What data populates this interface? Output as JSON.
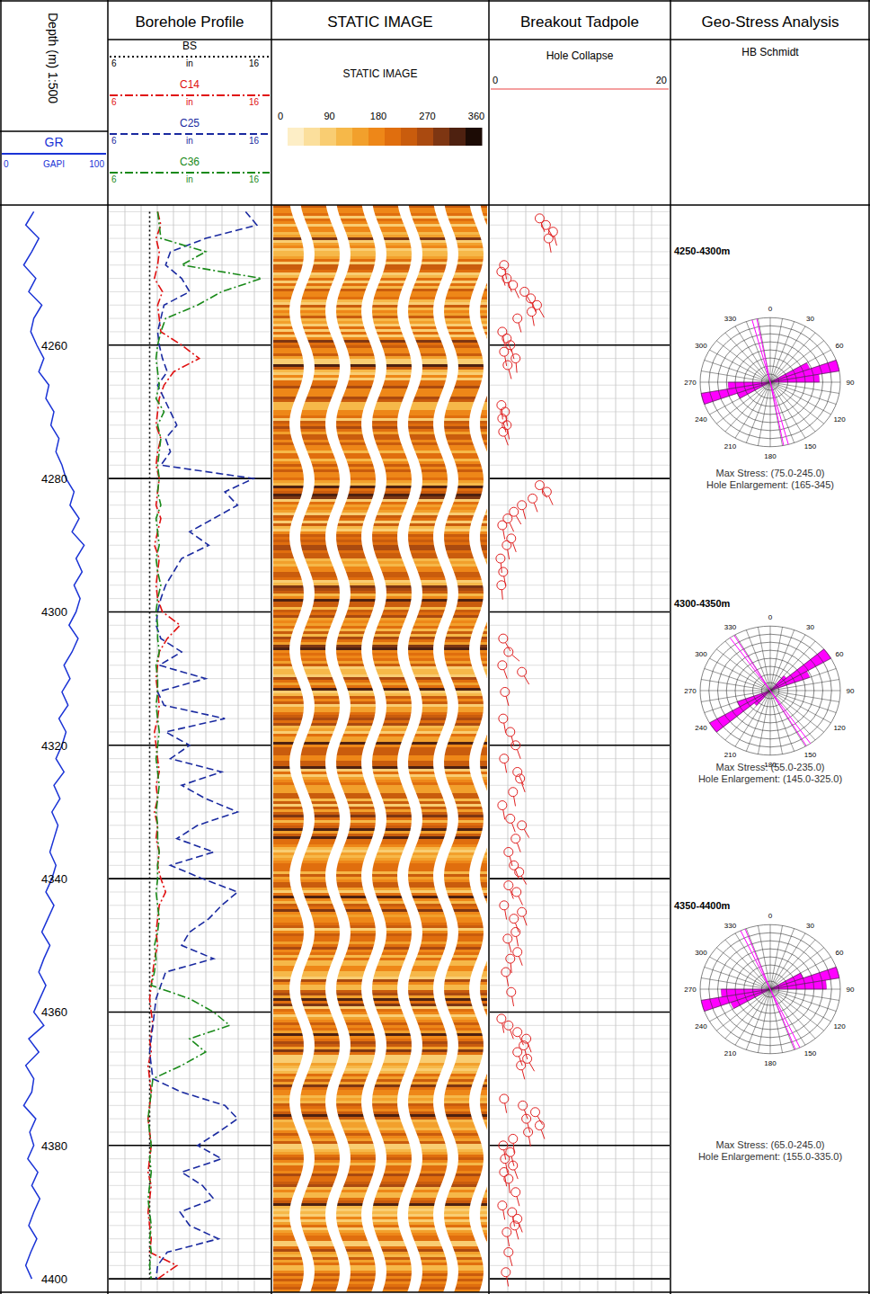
{
  "chart_data": {
    "type": "well_log",
    "depth_label": "Depth (m) 1:500",
    "ylim": [
      4239,
      4402
    ],
    "yticks": [
      4260,
      4280,
      4300,
      4320,
      4340,
      4360,
      4380,
      4400
    ],
    "x": [
      4240,
      4242,
      4244,
      4246,
      4248,
      4250,
      4252,
      4254,
      4256,
      4258,
      4260,
      4262,
      4264,
      4266,
      4268,
      4270,
      4272,
      4274,
      4276,
      4278,
      4280,
      4282,
      4284,
      4286,
      4288,
      4290,
      4292,
      4294,
      4296,
      4298,
      4300,
      4302,
      4304,
      4306,
      4308,
      4310,
      4312,
      4314,
      4316,
      4318,
      4320,
      4322,
      4324,
      4326,
      4328,
      4330,
      4332,
      4334,
      4336,
      4338,
      4340,
      4342,
      4344,
      4346,
      4348,
      4350,
      4352,
      4354,
      4356,
      4358,
      4360,
      4362,
      4364,
      4366,
      4368,
      4370,
      4372,
      4374,
      4376,
      4378,
      4380,
      4382,
      4384,
      4386,
      4388,
      4390,
      4392,
      4394,
      4396,
      4398,
      4400
    ],
    "gr": {
      "name": "GR",
      "unit": "GAPI",
      "xlim": [
        0,
        100
      ],
      "xticks": [
        0,
        100
      ],
      "color": "#1a33d6",
      "values": [
        30,
        22,
        35,
        28,
        20,
        32,
        25,
        38,
        30,
        27,
        33,
        40,
        35,
        45,
        42,
        50,
        47,
        55,
        52,
        58,
        62,
        70,
        66,
        75,
        68,
        80,
        72,
        78,
        70,
        76,
        72,
        65,
        74,
        68,
        60,
        66,
        58,
        64,
        55,
        62,
        58,
        52,
        60,
        50,
        56,
        48,
        54,
        50,
        46,
        52,
        48,
        42,
        50,
        44,
        38,
        46,
        40,
        35,
        42,
        36,
        30,
        40,
        25,
        35,
        22,
        30,
        28,
        20,
        32,
        26,
        30,
        24,
        34,
        28,
        36,
        30,
        25,
        33,
        27,
        22,
        28
      ]
    },
    "borehole": {
      "title": "Borehole Profile",
      "unit": "in",
      "xlim": [
        6,
        16
      ],
      "xticks": [
        6,
        16
      ],
      "series": [
        {
          "name": "BS",
          "color": "#000000",
          "line_style": "dotted",
          "values": [
            8.5,
            8.5,
            8.5,
            8.5,
            8.5,
            8.5,
            8.5,
            8.5,
            8.5,
            8.5,
            8.5,
            8.5,
            8.5,
            8.5,
            8.5,
            8.5,
            8.5,
            8.5,
            8.5,
            8.5,
            8.5,
            8.5,
            8.5,
            8.5,
            8.5,
            8.5,
            8.5,
            8.5,
            8.5,
            8.5,
            8.5,
            8.5,
            8.5,
            8.5,
            8.5,
            8.5,
            8.5,
            8.5,
            8.5,
            8.5,
            8.5,
            8.5,
            8.5,
            8.5,
            8.5,
            8.5,
            8.5,
            8.5,
            8.5,
            8.5,
            8.5,
            8.5,
            8.5,
            8.5,
            8.5,
            8.5,
            8.5,
            8.5,
            8.5,
            8.5,
            8.5,
            8.5,
            8.5,
            8.5,
            8.5,
            8.5,
            8.5,
            8.5,
            8.5,
            8.5,
            8.5,
            8.5,
            8.5,
            8.5,
            8.5,
            8.5,
            8.5,
            8.5,
            8.5,
            8.5,
            8.5
          ]
        },
        {
          "name": "C14",
          "color": "#e01010",
          "line_style": "dashdot",
          "values": [
            9.0,
            9.2,
            8.9,
            9.1,
            9.0,
            8.8,
            9.3,
            9.0,
            9.1,
            9.2,
            10.5,
            11.6,
            10.0,
            9.4,
            9.1,
            9.0,
            8.9,
            9.2,
            9.0,
            8.9,
            9.1,
            9.0,
            8.9,
            9.2,
            9.0,
            8.8,
            9.1,
            9.0,
            8.9,
            9.0,
            9.3,
            10.4,
            9.6,
            9.1,
            9.0,
            8.9,
            9.0,
            9.1,
            9.0,
            8.8,
            8.9,
            9.0,
            9.1,
            8.9,
            9.0,
            8.8,
            9.0,
            8.9,
            9.1,
            9.0,
            9.2,
            9.5,
            9.1,
            9.0,
            8.9,
            9.0,
            8.8,
            8.7,
            8.6,
            8.5,
            8.6,
            8.7,
            8.5,
            8.6,
            8.4,
            8.5,
            8.6,
            8.5,
            8.4,
            8.5,
            8.6,
            8.5,
            8.4,
            8.6,
            8.5,
            8.4,
            8.5,
            8.6,
            8.5,
            10.2,
            9.0
          ]
        },
        {
          "name": "C25",
          "color": "#1a2aa0",
          "line_style": "dashed",
          "values": [
            14.5,
            15.2,
            12.0,
            9.8,
            9.5,
            10.5,
            11.0,
            9.4,
            9.2,
            9.0,
            9.1,
            9.3,
            9.6,
            9.0,
            9.4,
            9.8,
            10.2,
            9.5,
            9.8,
            9.2,
            15.0,
            13.2,
            14.0,
            12.5,
            11.0,
            12.2,
            10.5,
            10.0,
            9.5,
            9.2,
            9.0,
            8.9,
            9.2,
            10.5,
            9.1,
            12.0,
            9.0,
            9.4,
            13.2,
            9.5,
            11.0,
            9.8,
            13.0,
            10.5,
            12.0,
            14.0,
            11.5,
            10.2,
            12.5,
            9.8,
            11.8,
            14.0,
            13.0,
            12.2,
            11.0,
            10.5,
            12.5,
            9.5,
            9.2,
            8.9,
            8.8,
            8.7,
            8.6,
            8.5,
            8.6,
            8.7,
            10.5,
            13.2,
            14.0,
            12.8,
            11.5,
            13.0,
            10.5,
            11.8,
            12.5,
            10.4,
            11.0,
            12.8,
            9.6,
            9.0,
            8.9
          ]
        },
        {
          "name": "C36",
          "color": "#1a8a1a",
          "line_style": "dashdot",
          "values": [
            9.0,
            9.1,
            9.2,
            12.0,
            10.5,
            15.5,
            13.0,
            11.5,
            9.5,
            9.2,
            9.0,
            8.9,
            9.0,
            9.1,
            8.9,
            9.4,
            9.0,
            9.2,
            9.1,
            9.0,
            9.1,
            9.0,
            9.2,
            8.9,
            9.0,
            9.1,
            8.9,
            9.0,
            9.2,
            9.0,
            8.9,
            9.0,
            9.0,
            9.1,
            8.9,
            9.0,
            9.0,
            8.9,
            9.0,
            9.1,
            9.0,
            8.9,
            9.0,
            9.1,
            9.0,
            8.9,
            9.0,
            9.0,
            9.1,
            9.0,
            9.0,
            8.9,
            9.0,
            9.1,
            9.0,
            8.8,
            8.9,
            8.8,
            8.6,
            11.0,
            12.5,
            13.5,
            11.0,
            12.0,
            10.5,
            8.7,
            8.6,
            8.5,
            8.4,
            8.5,
            8.6,
            8.5,
            8.6,
            8.5,
            8.4,
            8.5,
            8.6,
            8.5,
            8.6,
            8.5,
            8.6
          ]
        }
      ]
    },
    "image": {
      "title": "STATIC IMAGE",
      "label": "STATIC IMAGE",
      "ticks": [
        0,
        90,
        180,
        270,
        360
      ]
    },
    "tadpoles": {
      "title": "Breakout Tadpole",
      "name": "Hole Collapse",
      "xlim": [
        0,
        20
      ],
      "xticks": [
        0,
        20
      ],
      "color": "#e02020",
      "depth": [
        4241,
        4242,
        4243,
        4244,
        4248,
        4249,
        4250,
        4251,
        4252,
        4253,
        4254,
        4255,
        4256,
        4258,
        4259,
        4260,
        4261,
        4262,
        4263,
        4269,
        4270,
        4271,
        4272,
        4273,
        4281,
        4282,
        4283,
        4284,
        4285,
        4286,
        4287,
        4289,
        4290,
        4292,
        4294,
        4296,
        4304,
        4306,
        4308,
        4309,
        4312,
        4316,
        4318,
        4320,
        4322,
        4324,
        4325,
        4327,
        4329,
        4331,
        4332,
        4334,
        4336,
        4338,
        4339,
        4341,
        4342,
        4344,
        4345,
        4346,
        4348,
        4349,
        4351,
        4352,
        4354,
        4357,
        4361,
        4362,
        4363,
        4364,
        4365,
        4366,
        4367,
        4368,
        4373,
        4374,
        4375,
        4376,
        4377,
        4378,
        4379,
        4380,
        4381,
        4382,
        4383,
        4384,
        4385,
        4387,
        4389,
        4390,
        4391,
        4392,
        4393,
        4396,
        4399
      ],
      "values": [
        5.5,
        6.2,
        7.0,
        6.5,
        1.5,
        1.2,
        1.8,
        2.5,
        3.8,
        4.5,
        5.2,
        4.6,
        3.0,
        1.3,
        1.8,
        2.2,
        1.5,
        2.8,
        1.9,
        1.2,
        1.6,
        1.3,
        1.8,
        1.4,
        5.5,
        6.3,
        4.7,
        3.5,
        2.6,
        1.9,
        1.3,
        2.3,
        1.8,
        1.1,
        1.4,
        1.2,
        1.4,
        2.0,
        1.3,
        3.5,
        1.6,
        1.4,
        2.2,
        2.8,
        1.5,
        3.0,
        3.3,
        2.5,
        1.3,
        2.2,
        3.5,
        2.8,
        2.0,
        2.6,
        3.2,
        2.0,
        2.9,
        1.5,
        3.5,
        2.6,
        2.8,
        1.9,
        3.0,
        2.2,
        1.7,
        2.3,
        1.2,
        2.0,
        3.0,
        4.0,
        3.7,
        3.0,
        4.1,
        3.4,
        1.5,
        3.6,
        5.0,
        4.0,
        5.5,
        4.2,
        2.5,
        1.4,
        2.2,
        1.6,
        2.5,
        1.5,
        2.0,
        2.8,
        1.3,
        2.4,
        3.0,
        2.7,
        1.8,
        2.0,
        1.7
      ],
      "azimuth": [
        160,
        150,
        165,
        170,
        170,
        165,
        160,
        155,
        150,
        160,
        150,
        170,
        165,
        170,
        160,
        165,
        170,
        175,
        165,
        175,
        170,
        165,
        170,
        160,
        150,
        155,
        160,
        165,
        150,
        155,
        170,
        160,
        170,
        175,
        170,
        175,
        150,
        130,
        160,
        150,
        165,
        170,
        165,
        160,
        170,
        155,
        160,
        170,
        170,
        160,
        150,
        160,
        165,
        160,
        150,
        160,
        155,
        170,
        160,
        160,
        170,
        165,
        160,
        175,
        170,
        170,
        170,
        160,
        155,
        160,
        165,
        160,
        150,
        165,
        170,
        160,
        150,
        165,
        160,
        170,
        175,
        170,
        165,
        170,
        160,
        170,
        175,
        165,
        170,
        170,
        160,
        165,
        170,
        165,
        170
      ]
    },
    "stress": {
      "title": "Geo-Stress Analysis",
      "subtitle": "HB Schmidt",
      "rlim": [
        0,
        10
      ],
      "ticks": [
        0,
        30,
        60,
        90,
        120,
        150,
        180,
        210,
        240,
        270,
        300,
        330
      ],
      "roses": [
        {
          "interval": "4250-4300m",
          "max_stress": "Max Stress: (75.0-245.0)",
          "hole_enlargement": "Hole Enlargement: (165-345)",
          "bins": [
            60,
            70,
            80,
            240,
            250,
            260
          ],
          "counts": [
            6,
            10,
            7,
            5,
            10,
            6
          ],
          "enlargement": [
            165,
            345
          ],
          "color": "#ff00ff"
        },
        {
          "interval": "4300-4350m",
          "max_stress": "Max Stress: (55.0-235.0)",
          "hole_enlargement": "Hole Enlargement: (145.0-325.0)",
          "bins": [
            40,
            50,
            60,
            220,
            230,
            240
          ],
          "counts": [
            3,
            10,
            6,
            3,
            10,
            5
          ],
          "enlargement": [
            145,
            325
          ],
          "color": "#ff00ff"
        },
        {
          "interval": "4350-4400m",
          "max_stress": "Max Stress: (65.0-245.0)",
          "hole_enlargement": "Hole Enlargement: (155.0-335.0)",
          "bins": [
            60,
            70,
            80,
            240,
            250,
            260
          ],
          "counts": [
            5,
            10,
            8,
            6,
            10,
            7
          ],
          "enlargement": [
            155,
            335
          ],
          "color": "#ff00ff"
        }
      ]
    }
  }
}
